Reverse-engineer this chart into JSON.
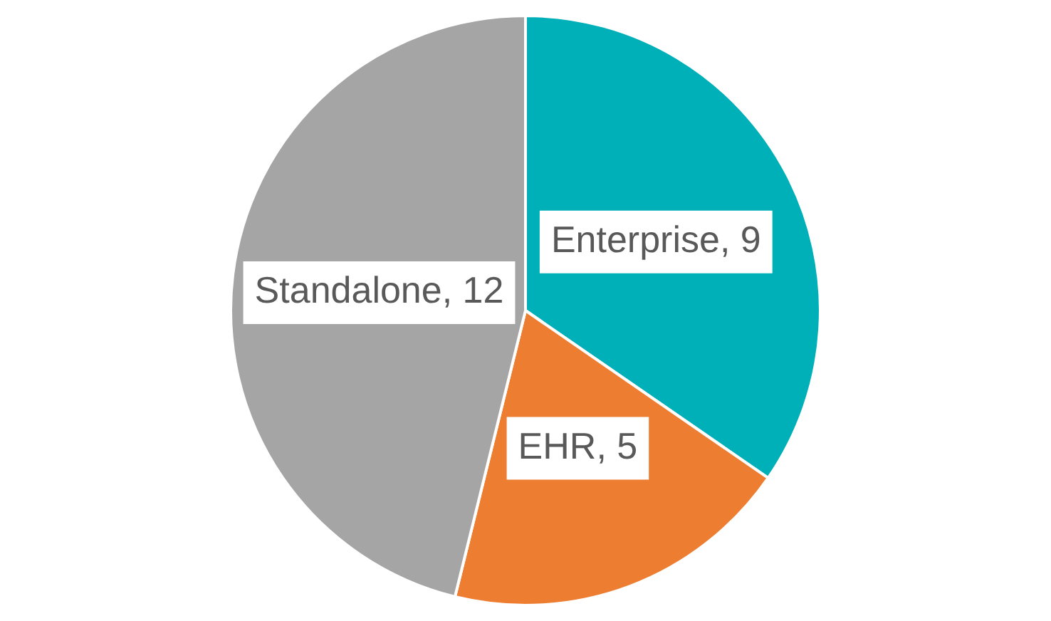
{
  "chart_data": {
    "type": "pie",
    "categories": [
      "Enterprise",
      "EHR",
      "Standalone"
    ],
    "values": [
      9,
      5,
      12
    ],
    "value_labels": [
      ", 9",
      ", 5",
      ", 12"
    ],
    "colors": [
      "#00b0b9",
      "#ed7d31",
      "#a5a5a5"
    ],
    "legend": false
  }
}
